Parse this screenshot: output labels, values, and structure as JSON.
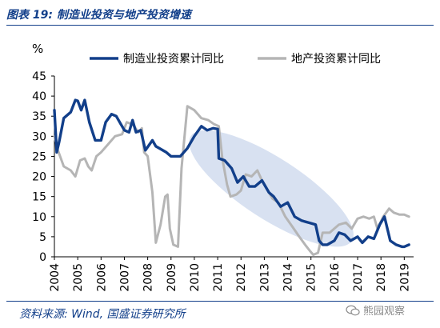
{
  "header": {
    "figure_title": "图表 19:  制造业投资与地产投资增速"
  },
  "footer": {
    "source": "资料来源:  Wind,  国盛证券研究所",
    "watermark": "熊园观察"
  },
  "colors": {
    "manufacturing": "#123f8a",
    "real_estate": "#b5b5b5",
    "ellipse": "#b8c9e6",
    "title": "#123f8a",
    "axis": "#000000"
  },
  "icons": {
    "watermark": "wechat-bubble-icon"
  },
  "chart_data": {
    "type": "line",
    "ylabel": "%",
    "ylim": [
      0,
      45
    ],
    "yticks": [
      0,
      5,
      10,
      15,
      20,
      25,
      30,
      35,
      40,
      45
    ],
    "xlim": [
      2004,
      2019.4
    ],
    "xticks": [
      "2004",
      "2005",
      "2006",
      "2007",
      "2008",
      "2009",
      "2010",
      "2011",
      "2012",
      "2013",
      "2014",
      "2015",
      "2016",
      "2017",
      "2018",
      "2019"
    ],
    "legend_position": "top",
    "grid": false,
    "annotations": [
      {
        "type": "ellipse",
        "description": "highlighted region spanning the 2011–2015 decline"
      }
    ],
    "series": [
      {
        "name": "制造业投资累计同比",
        "x": [
          2004.0,
          2004.1,
          2004.2,
          2004.4,
          2004.7,
          2004.9,
          2005.0,
          2005.15,
          2005.3,
          2005.5,
          2005.75,
          2006.0,
          2006.2,
          2006.45,
          2006.65,
          2006.85,
          2007.0,
          2007.2,
          2007.35,
          2007.5,
          2007.7,
          2007.9,
          2008.2,
          2008.35,
          2008.5,
          2008.8,
          2009.0,
          2009.4,
          2009.7,
          2010.0,
          2010.3,
          2010.55,
          2010.8,
          2011.0,
          2011.05,
          2011.3,
          2011.6,
          2011.85,
          2012.1,
          2012.35,
          2012.6,
          2012.9,
          2013.2,
          2013.4,
          2013.7,
          2014.0,
          2014.3,
          2014.6,
          2014.9,
          2015.2,
          2015.35,
          2015.5,
          2015.7,
          2016.0,
          2016.2,
          2016.45,
          2016.7,
          2017.0,
          2017.2,
          2017.45,
          2017.7,
          2017.95,
          2018.15,
          2018.4,
          2018.65,
          2018.9,
          2019.0,
          2019.2
        ],
        "values": [
          36.5,
          26.0,
          28.5,
          34.5,
          36.0,
          39.0,
          38.8,
          36.5,
          39.0,
          33.5,
          29.0,
          29.0,
          33.5,
          35.5,
          35.0,
          33.0,
          31.5,
          31.0,
          34.0,
          31.0,
          31.5,
          26.5,
          29.0,
          27.5,
          27.0,
          26.0,
          25.0,
          25.0,
          27.0,
          30.0,
          32.5,
          31.5,
          32.0,
          31.8,
          24.5,
          24.0,
          22.0,
          18.5,
          20.0,
          17.5,
          17.5,
          19.0,
          16.0,
          15.0,
          12.5,
          13.5,
          10.0,
          9.0,
          8.5,
          8.0,
          4.0,
          3.0,
          3.0,
          4.0,
          6.0,
          5.5,
          4.0,
          5.0,
          3.5,
          5.0,
          4.5,
          8.0,
          10.0,
          4.0,
          3.0,
          2.5,
          2.5,
          3.0
        ]
      },
      {
        "name": "地产投资累计同比",
        "x": [
          2004.0,
          2004.15,
          2004.4,
          2004.7,
          2004.9,
          2005.1,
          2005.3,
          2005.45,
          2005.6,
          2005.8,
          2006.0,
          2006.3,
          2006.6,
          2006.9,
          2007.1,
          2007.35,
          2007.6,
          2007.75,
          2007.85,
          2008.0,
          2008.2,
          2008.35,
          2008.55,
          2008.75,
          2008.85,
          2008.95,
          2009.1,
          2009.3,
          2009.45,
          2009.7,
          2010.0,
          2010.3,
          2010.6,
          2010.85,
          2011.05,
          2011.2,
          2011.4,
          2011.55,
          2011.8,
          2012.0,
          2012.2,
          2012.45,
          2012.7,
          2012.9,
          2013.1,
          2013.35,
          2013.6,
          2013.9,
          2014.2,
          2014.5,
          2014.75,
          2014.95,
          2015.1,
          2015.3,
          2015.5,
          2015.8,
          2016.0,
          2016.2,
          2016.5,
          2016.75,
          2017.0,
          2017.25,
          2017.5,
          2017.7,
          2017.85,
          2018.1,
          2018.35,
          2018.55,
          2018.8,
          2019.0,
          2019.2
        ],
        "values": [
          30.0,
          26.5,
          22.5,
          21.5,
          20.0,
          24.0,
          24.5,
          22.5,
          21.5,
          25.0,
          26.0,
          28.0,
          30.0,
          30.5,
          33.5,
          33.0,
          31.0,
          32.0,
          26.0,
          25.0,
          16.0,
          3.5,
          8.0,
          15.0,
          15.5,
          7.0,
          3.0,
          2.5,
          22.0,
          37.5,
          36.5,
          34.5,
          34.0,
          33.0,
          32.5,
          24.5,
          18.0,
          15.0,
          15.5,
          16.5,
          20.5,
          20.0,
          21.5,
          19.0,
          17.0,
          14.5,
          13.5,
          10.0,
          7.5,
          5.0,
          3.0,
          1.5,
          0.5,
          1.0,
          6.0,
          6.0,
          7.0,
          8.0,
          8.5,
          7.0,
          9.5,
          10.0,
          9.5,
          10.0,
          7.0,
          10.0,
          12.0,
          11.0,
          10.5,
          10.5,
          10.0
        ]
      }
    ]
  }
}
